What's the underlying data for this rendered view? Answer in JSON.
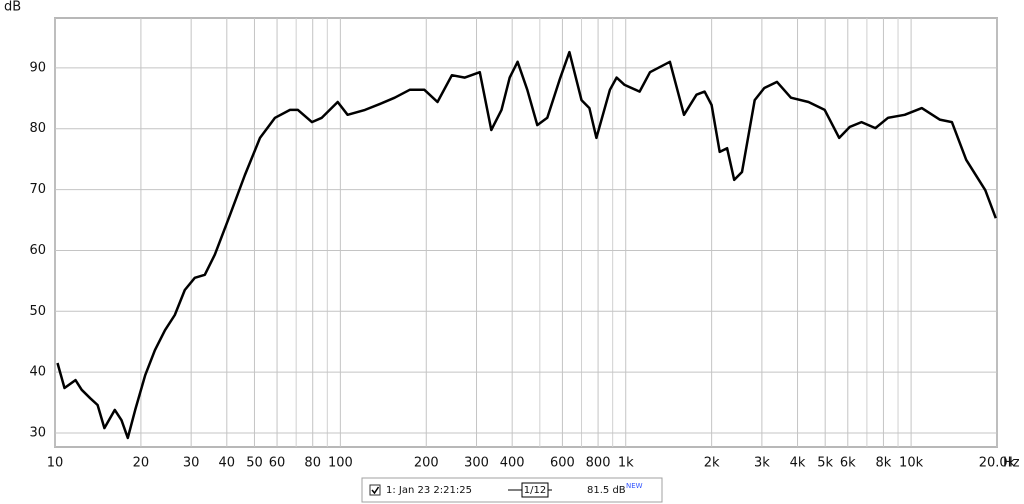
{
  "chart_data": {
    "type": "line",
    "y_label": "dB",
    "x_unit": "Hz",
    "log_x": true,
    "grid": true,
    "xlim": [
      10,
      20000
    ],
    "ylim": [
      27.7,
      98.2
    ],
    "xticks": [
      10,
      20,
      30,
      40,
      50,
      60,
      80,
      100,
      200,
      300,
      400,
      600,
      800,
      {
        "value": 1000,
        "label": "1k"
      },
      {
        "value": 2000,
        "label": "2k"
      },
      {
        "value": 3000,
        "label": "3k"
      },
      {
        "value": 4000,
        "label": "4k"
      },
      {
        "value": 5000,
        "label": "5k"
      },
      {
        "value": 6000,
        "label": "6k"
      },
      {
        "value": 8000,
        "label": "8k"
      },
      {
        "value": 10000,
        "label": "10k"
      },
      {
        "value": 20000,
        "label": "20.0k"
      }
    ],
    "yticks": [
      30,
      40,
      50,
      60,
      70,
      80,
      90
    ],
    "x": [
      10.2,
      10.8,
      11.8,
      12.4,
      13.3,
      14.1,
      14.9,
      16.2,
      17.1,
      18.0,
      19.1,
      20.7,
      22.4,
      24.3,
      26.3,
      28.5,
      30.9,
      33.5,
      36.3,
      41.0,
      46.3,
      52.3,
      59.0,
      66.6,
      71.0,
      79.5,
      86.1,
      97.9,
      106,
      122,
      138,
      155,
      175,
      197,
      219,
      246,
      273,
      308,
      338,
      367,
      392,
      418,
      452,
      490,
      531,
      586,
      635,
      700,
      746,
      789,
      880,
      929,
      991,
      1118,
      1216,
      1428,
      1600,
      1770,
      1890,
      2000,
      2134,
      2265,
      2400,
      2556,
      2830,
      3060,
      3390,
      3790,
      4370,
      4980,
      5600,
      6100,
      6700,
      7500,
      8300,
      9500,
      10900,
      12600,
      13900,
      15600,
      18200,
      19800
    ],
    "series": [
      {
        "name": "1: Jan 23 2:21:25",
        "color": "#000000",
        "values": [
          41.5,
          37.4,
          38.7,
          37.1,
          35.7,
          34.6,
          30.8,
          33.8,
          32.1,
          29.2,
          33.8,
          39.5,
          43.6,
          46.9,
          49.4,
          53.5,
          55.5,
          56.0,
          59.3,
          65.8,
          72.4,
          78.5,
          81.8,
          83.1,
          83.1,
          81.1,
          81.8,
          84.4,
          82.3,
          83.1,
          84.1,
          85.1,
          86.4,
          86.4,
          84.4,
          88.8,
          88.4,
          89.3,
          79.8,
          83.1,
          88.4,
          91.0,
          86.4,
          80.6,
          81.8,
          88.0,
          92.6,
          84.7,
          83.4,
          78.5,
          86.4,
          88.4,
          87.2,
          86.1,
          89.3,
          91.0,
          82.3,
          85.6,
          86.1,
          83.9,
          76.2,
          76.8,
          71.6,
          72.9,
          84.7,
          86.7,
          87.7,
          85.1,
          84.4,
          83.1,
          78.5,
          80.3,
          81.1,
          80.1,
          81.8,
          82.3,
          83.4,
          81.5,
          81.1,
          74.9,
          69.9,
          65.3
        ]
      }
    ],
    "legend": {
      "smoothing": "1/12",
      "level": "81.5 dB",
      "badge": "NEW"
    }
  }
}
